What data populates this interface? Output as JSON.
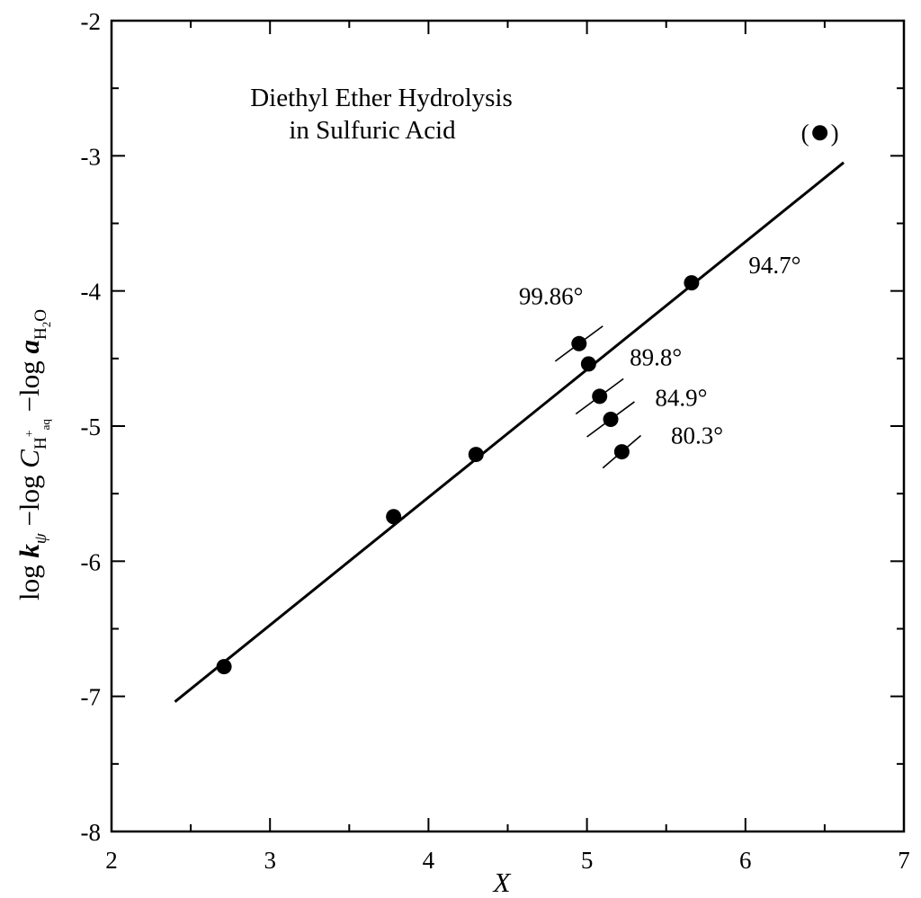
{
  "chart_data": {
    "type": "scatter",
    "title": [
      "Diethyl Ether Hydrolysis",
      "in Sulfuric Acid"
    ],
    "xlabel": "X",
    "ylabel": {
      "prefix": "log ",
      "k": "k",
      "k_sub": "ψ",
      "mid": " −log ",
      "c": "C",
      "c_sub": "H",
      "c_sup": "+",
      "c_sub2": "aq",
      "end": " −log ",
      "a": "a",
      "a_sub": "H",
      "a_sub_num": "2",
      "a_sub_end": "O"
    },
    "xlim": [
      2,
      7
    ],
    "ylim": [
      -8,
      -2
    ],
    "xticks": [
      2,
      3,
      4,
      5,
      6,
      7
    ],
    "yticks": [
      -8,
      -7,
      -6,
      -5,
      -4,
      -3,
      -2
    ],
    "grid": false,
    "points": [
      {
        "x": 2.71,
        "y": -6.78
      },
      {
        "x": 3.78,
        "y": -5.67
      },
      {
        "x": 4.3,
        "y": -5.21
      },
      {
        "x": 4.95,
        "y": -4.39
      },
      {
        "x": 5.01,
        "y": -4.54
      },
      {
        "x": 5.08,
        "y": -4.78
      },
      {
        "x": 5.15,
        "y": -4.95
      },
      {
        "x": 5.22,
        "y": -5.19
      },
      {
        "x": 5.66,
        "y": -3.94
      }
    ],
    "excluded_point": {
      "x": 6.47,
      "y": -2.83,
      "label_open": "(",
      "label_close": ")"
    },
    "fit_line": {
      "x": [
        2.4,
        6.62
      ],
      "y": [
        -7.04,
        -3.05
      ]
    },
    "error_bars": [
      {
        "x": 4.95,
        "y": -4.39,
        "dx": 0.15,
        "dy": 0.13
      },
      {
        "x": 5.08,
        "y": -4.78,
        "dx": 0.15,
        "dy": 0.13
      },
      {
        "x": 5.15,
        "y": -4.95,
        "dx": 0.15,
        "dy": 0.13
      },
      {
        "x": 5.22,
        "y": -5.19,
        "dx": 0.12,
        "dy": 0.12
      }
    ],
    "annotations": [
      {
        "text": "99.86°",
        "x": 4.57,
        "y": -4.1
      },
      {
        "text": "89.8°",
        "x": 5.27,
        "y": -4.55
      },
      {
        "text": "84.9°",
        "x": 5.43,
        "y": -4.85
      },
      {
        "text": "80.3°",
        "x": 5.53,
        "y": -5.13
      },
      {
        "text": "94.7°",
        "x": 6.02,
        "y": -3.87
      }
    ]
  }
}
